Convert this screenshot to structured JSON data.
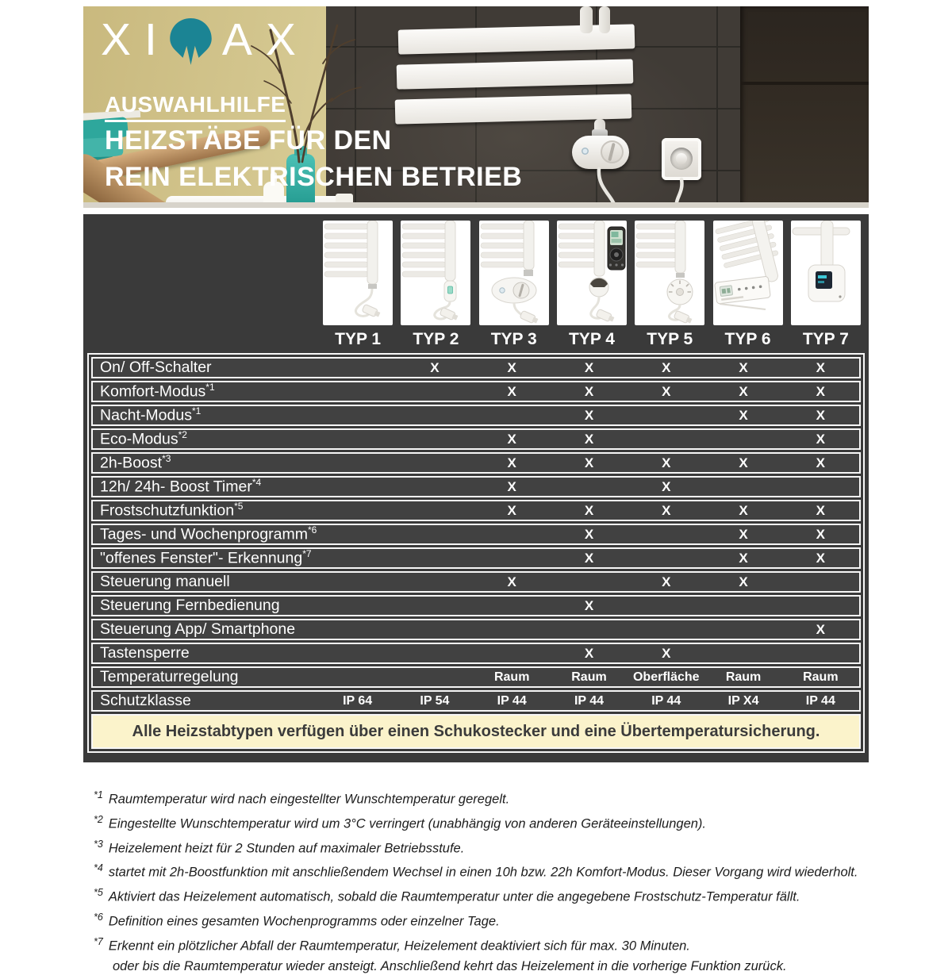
{
  "banner": {
    "logo_pre": "XI",
    "logo_post": "AX",
    "eyebrow": "AUSWAHLHILFE",
    "title_line1": "HEIZSTÄBE FÜR DEN",
    "title_line2": "REIN ELEKTRISCHEN BETRIEB"
  },
  "table": {
    "types": [
      "TYP 1",
      "TYP 2",
      "TYP 3",
      "TYP 4",
      "TYP 5",
      "TYP 6",
      "TYP 7"
    ],
    "features": [
      {
        "label": "On/ Off-Schalter",
        "sup": "",
        "cells": [
          "",
          "X",
          "X",
          "X",
          "X",
          "X",
          "X"
        ]
      },
      {
        "label": "Komfort-Modus",
        "sup": "*1",
        "cells": [
          "",
          "",
          "X",
          "X",
          "X",
          "X",
          "X"
        ]
      },
      {
        "label": "Nacht-Modus",
        "sup": "*1",
        "cells": [
          "",
          "",
          "",
          "X",
          "",
          "X",
          "X"
        ]
      },
      {
        "label": "Eco-Modus",
        "sup": "*2",
        "cells": [
          "",
          "",
          "X",
          "X",
          "",
          "",
          "X"
        ]
      },
      {
        "label": "2h-Boost",
        "sup": "*3",
        "cells": [
          "",
          "",
          "X",
          "X",
          "X",
          "X",
          "X"
        ]
      },
      {
        "label": "12h/ 24h- Boost Timer",
        "sup": "*4",
        "cells": [
          "",
          "",
          "X",
          "",
          "X",
          "",
          ""
        ]
      },
      {
        "label": "Frostschutzfunktion",
        "sup": "*5",
        "cells": [
          "",
          "",
          "X",
          "X",
          "X",
          "X",
          "X"
        ]
      },
      {
        "label": "Tages- und Wochenprogramm",
        "sup": "*6",
        "cells": [
          "",
          "",
          "",
          "X",
          "",
          "X",
          "X"
        ]
      },
      {
        "label": "\"offenes Fenster\"- Erkennung",
        "sup": "*7",
        "cells": [
          "",
          "",
          "",
          "X",
          "",
          "X",
          "X"
        ]
      },
      {
        "label": "Steuerung manuell",
        "sup": "",
        "cells": [
          "",
          "",
          "X",
          "",
          "X",
          "X",
          ""
        ]
      },
      {
        "label": "Steuerung Fernbedienung",
        "sup": "",
        "cells": [
          "",
          "",
          "",
          "X",
          "",
          "",
          ""
        ]
      },
      {
        "label": "Steuerung App/ Smartphone",
        "sup": "",
        "cells": [
          "",
          "",
          "",
          "",
          "",
          "",
          "X"
        ]
      },
      {
        "label": "Tastensperre",
        "sup": "",
        "cells": [
          "",
          "",
          "",
          "X",
          "X",
          "",
          ""
        ]
      },
      {
        "label": "Temperaturregelung",
        "sup": "",
        "cells": [
          "",
          "",
          "Raum",
          "Raum",
          "Oberfläche",
          "Raum",
          "Raum"
        ]
      },
      {
        "label": "Schutzklasse",
        "sup": "",
        "cells": [
          "IP 64",
          "IP 54",
          "IP 44",
          "IP 44",
          "IP 44",
          "IP X4",
          "IP 44"
        ]
      }
    ],
    "note": "Alle Heizstabtypen verfügen über einen Schukostecker und eine Übertemperatursicherung."
  },
  "footnotes": [
    {
      "marker": "*1",
      "text": "Raumtemperatur wird nach eingestellter Wunschtemperatur geregelt."
    },
    {
      "marker": "*2",
      "text": "Eingestellte Wunschtemperatur wird um 3°C verringert (unabhängig von anderen Geräteeinstellungen)."
    },
    {
      "marker": "*3",
      "text": "Heizelement heizt für 2 Stunden auf maximaler Betriebsstufe."
    },
    {
      "marker": "*4",
      "text": "startet mit 2h-Boostfunktion mit anschließendem Wechsel in einen 10h bzw. 22h Komfort-Modus. Dieser Vorgang wird wiederholt."
    },
    {
      "marker": "*5",
      "text": "Aktiviert das Heizelement automatisch, sobald die Raumtemperatur unter die angegebene Frostschutz-Temperatur fällt."
    },
    {
      "marker": "*6",
      "text": "Definition eines gesamten Wochenprogramms oder einzelner Tage."
    },
    {
      "marker": "*7",
      "text": "Erkennt ein plötzlicher Abfall der Raumtemperatur, Heizelement deaktiviert sich für max. 30 Minuten.",
      "text2": "oder bis die Raumtemperatur wieder ansteigt. Anschließend kehrt das Heizelement in die vorherige Funktion zurück."
    }
  ],
  "colors": {
    "brand_teal": "#1b8494",
    "panel_dark": "#3a3a3a",
    "row_border": "#f6f6f6",
    "note_bg": "#fbf3cb",
    "wall_yellow": "#d8cc96",
    "stone_dark": "#403b36"
  }
}
